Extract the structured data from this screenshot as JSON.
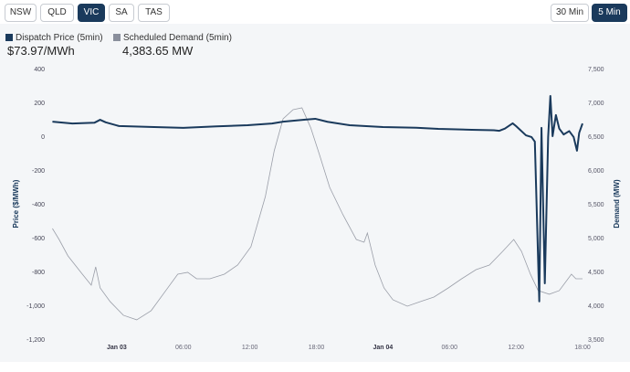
{
  "regions": [
    "NSW",
    "QLD",
    "VIC",
    "SA",
    "TAS"
  ],
  "active_region": "VIC",
  "intervals": [
    "30 Min",
    "5 Min"
  ],
  "active_interval": "5 Min",
  "legend": {
    "price": {
      "label": "Dispatch Price (5min)",
      "value": "$73.97/MWh",
      "color": "#1a3a5c"
    },
    "demand": {
      "label": "Scheduled Demand (5min)",
      "value": "4,383.65 MW",
      "color": "#8a8f9c"
    }
  },
  "chart_data": {
    "type": "line",
    "x_unit": "hours since Jan 02 18:00",
    "xlim": [
      0,
      48
    ],
    "x_ticks": [
      {
        "h": 6,
        "label": "Jan 03"
      },
      {
        "h": 12,
        "label": "06:00"
      },
      {
        "h": 18,
        "label": "12:00"
      },
      {
        "h": 24,
        "label": "18:00"
      },
      {
        "h": 30,
        "label": "Jan 04"
      },
      {
        "h": 36,
        "label": "06:00"
      },
      {
        "h": 42,
        "label": "12:00"
      },
      {
        "h": 48,
        "label": "18:00"
      }
    ],
    "y_left": {
      "label": "Price ($/MWh)",
      "lim": [
        -1200,
        400
      ],
      "ticks": [
        "400",
        "200",
        "0",
        "-200",
        "-400",
        "-600",
        "-800",
        "-1,000",
        "-1,200"
      ]
    },
    "y_right": {
      "label": "Demand (MW)",
      "lim": [
        3500,
        7500
      ],
      "ticks": [
        "7,500",
        "7,000",
        "6,500",
        "6,000",
        "5,500",
        "5,000",
        "4,500",
        "4,000",
        "3,500"
      ]
    },
    "series": [
      {
        "name": "Dispatch Price (5min)",
        "axis": "left",
        "points": [
          [
            0.2,
            86
          ],
          [
            2,
            75
          ],
          [
            4,
            80
          ],
          [
            4.5,
            97
          ],
          [
            5,
            82
          ],
          [
            6.2,
            60
          ],
          [
            9,
            55
          ],
          [
            12,
            49
          ],
          [
            15,
            58
          ],
          [
            17.8,
            65
          ],
          [
            20,
            75
          ],
          [
            21,
            86
          ],
          [
            23,
            98
          ],
          [
            23.9,
            103
          ],
          [
            25,
            85
          ],
          [
            27,
            65
          ],
          [
            30,
            54
          ],
          [
            33,
            50
          ],
          [
            35,
            43
          ],
          [
            38,
            38
          ],
          [
            40,
            35
          ],
          [
            40.5,
            32
          ],
          [
            41,
            45
          ],
          [
            41.7,
            76
          ],
          [
            42,
            60
          ],
          [
            42.9,
            5
          ],
          [
            43.4,
            -5
          ],
          [
            43.7,
            -32
          ],
          [
            44.1,
            -977
          ],
          [
            44.3,
            49
          ],
          [
            44.6,
            -870
          ],
          [
            44.9,
            -5
          ],
          [
            45.1,
            238
          ],
          [
            45.3,
            0
          ],
          [
            45.6,
            125
          ],
          [
            45.9,
            45
          ],
          [
            46.3,
            10
          ],
          [
            46.8,
            30
          ],
          [
            47.2,
            -5
          ],
          [
            47.5,
            -86
          ],
          [
            47.7,
            20
          ],
          [
            48,
            75
          ]
        ]
      },
      {
        "name": "Scheduled Demand (5min)",
        "axis": "right",
        "points": [
          [
            0.2,
            5135
          ],
          [
            0.8,
            4973
          ],
          [
            1.6,
            4730
          ],
          [
            2.9,
            4460
          ],
          [
            3.7,
            4298
          ],
          [
            4.1,
            4568
          ],
          [
            4.5,
            4257
          ],
          [
            5.4,
            4055
          ],
          [
            6.6,
            3852
          ],
          [
            7.8,
            3785
          ],
          [
            9.1,
            3920
          ],
          [
            10.3,
            4190
          ],
          [
            11.5,
            4460
          ],
          [
            12.4,
            4487
          ],
          [
            13.2,
            4392
          ],
          [
            14.4,
            4392
          ],
          [
            15.7,
            4460
          ],
          [
            16.9,
            4595
          ],
          [
            18.1,
            4865
          ],
          [
            19.4,
            5608
          ],
          [
            20.2,
            6284
          ],
          [
            21,
            6757
          ],
          [
            21.9,
            6892
          ],
          [
            22.7,
            6919
          ],
          [
            23.5,
            6622
          ],
          [
            24.3,
            6216
          ],
          [
            25.2,
            5743
          ],
          [
            26.4,
            5338
          ],
          [
            27.6,
            4973
          ],
          [
            28.3,
            4932
          ],
          [
            28.6,
            5068
          ],
          [
            29.3,
            4595
          ],
          [
            30.1,
            4257
          ],
          [
            30.9,
            4082
          ],
          [
            32.2,
            3987
          ],
          [
            33.4,
            4055
          ],
          [
            34.6,
            4122
          ],
          [
            35.9,
            4257
          ],
          [
            37.1,
            4392
          ],
          [
            38.4,
            4527
          ],
          [
            39.6,
            4595
          ],
          [
            40.8,
            4797
          ],
          [
            41.8,
            4973
          ],
          [
            42.5,
            4797
          ],
          [
            43.3,
            4460
          ],
          [
            44,
            4217
          ],
          [
            45,
            4163
          ],
          [
            45.9,
            4217
          ],
          [
            47,
            4460
          ],
          [
            47.4,
            4392
          ],
          [
            48,
            4392
          ]
        ]
      }
    ]
  }
}
